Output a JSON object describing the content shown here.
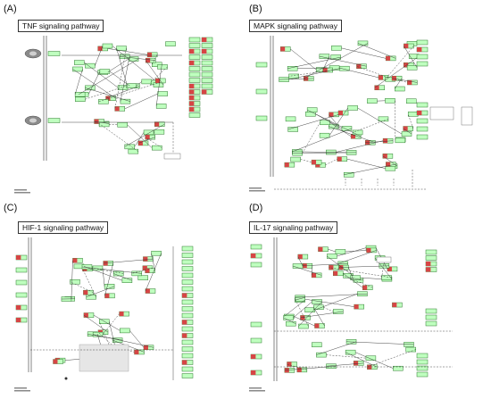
{
  "panels": [
    {
      "letter": "(A)",
      "title": "TNF  signaling pathway"
    },
    {
      "letter": "(B)",
      "title": "MAPK signaling pathway"
    },
    {
      "letter": "(C)",
      "title": "HIF-1 signaling pathway"
    },
    {
      "letter": "(D)",
      "title": "IL-17 signaling pathway"
    }
  ],
  "colors": {
    "node_fill": "#bfffbf",
    "node_border": "#2f7a2f",
    "highlight": "#d64545",
    "edge": "#333333"
  }
}
